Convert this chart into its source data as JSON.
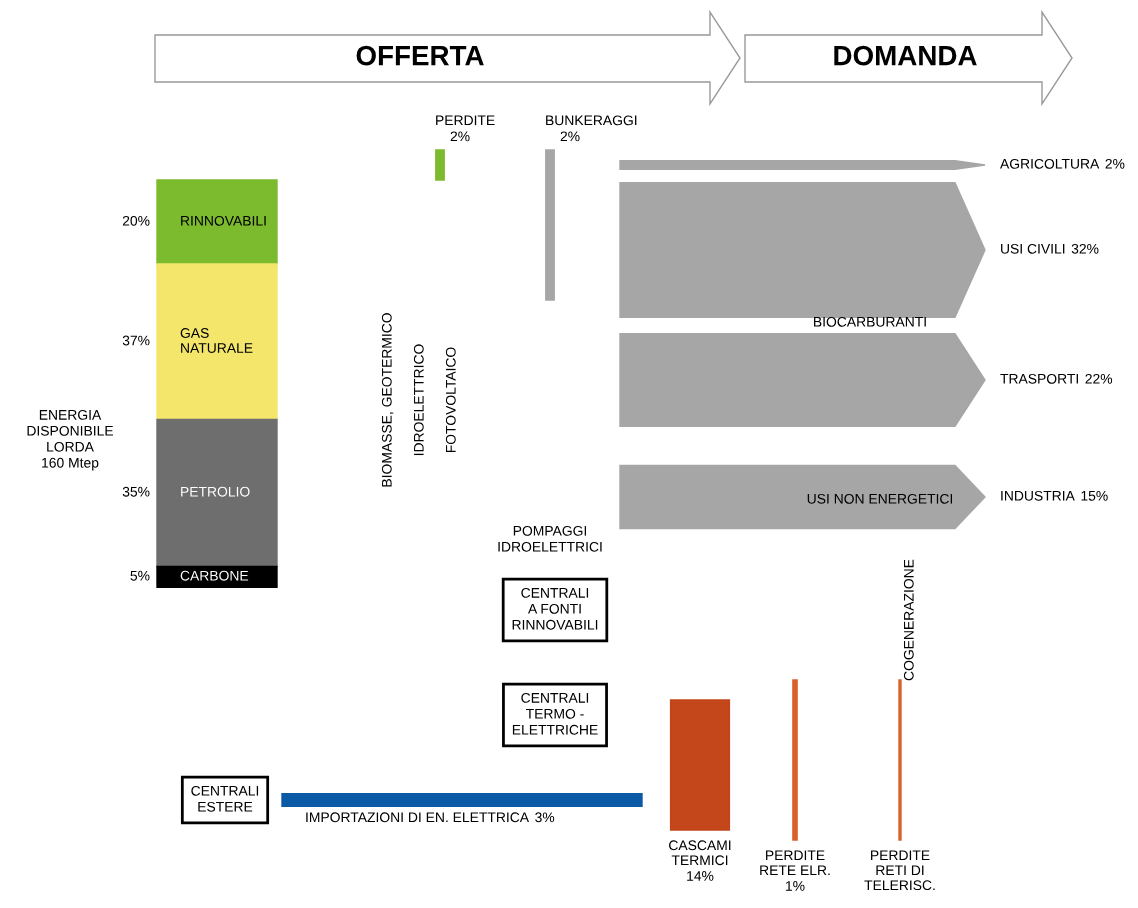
{
  "chart_data": {
    "type": "other",
    "categories": [
      "RINNOVABILI",
      "GAS\nNATURALE",
      "PETROLIO",
      "CARBONE",
      "AGRICOLTURA",
      "USI CIVILI",
      "TRASPORTI",
      "INDUSTRIA",
      "PERDITE",
      "BUNKERAGGI",
      "CASCAMI\nTERMICI",
      "PERDITE\nRETE ELR.",
      "PERDITE\nRETI DI\nTELERISC.",
      "IMPORTAZIONI DI EN. ELETTRICA"
    ],
    "values": [
      20,
      37,
      35,
      5,
      2,
      32,
      22,
      15,
      2,
      2,
      14,
      1,
      null,
      3
    ],
    "value_labels": [
      "20%",
      "37%",
      "35%",
      "5%",
      "2%",
      "32%",
      "22%",
      "15%",
      "2%",
      "2%",
      "14%",
      "1%",
      null,
      "3%"
    ],
    "colors": [
      "#7dbb2e",
      "#f3e66b",
      "#6e6e6e",
      "#000000",
      "#a6a6a6",
      "#a6a6a6",
      "#a6a6a6",
      "#a6a6a6",
      "#7dbb2e",
      "#a6a6a6",
      "#c4461b",
      "#d9622b",
      "#d9622b",
      "#0b5aa6"
    ],
    "annotations": [
      "OFFERTA",
      "DOMANDA",
      "ENERGIA\nDISPONIBILE\nLORDA\n160 Mtep",
      "BIOMASSE, GEOTERMICO",
      "IDROELETTRICO",
      "FOTOVOLTAICO",
      "POMPAGGI\nIDROELETTRICI",
      "CENTRALI\nA FONTI\nRINNOVABILI",
      "CENTRALI\nTERMO -\nELETTRICHE",
      "CENTRALI\nESTERE",
      "BIOCARBURANTI",
      "USI NON ENERGETICI",
      "COGENERAZIONE"
    ]
  }
}
